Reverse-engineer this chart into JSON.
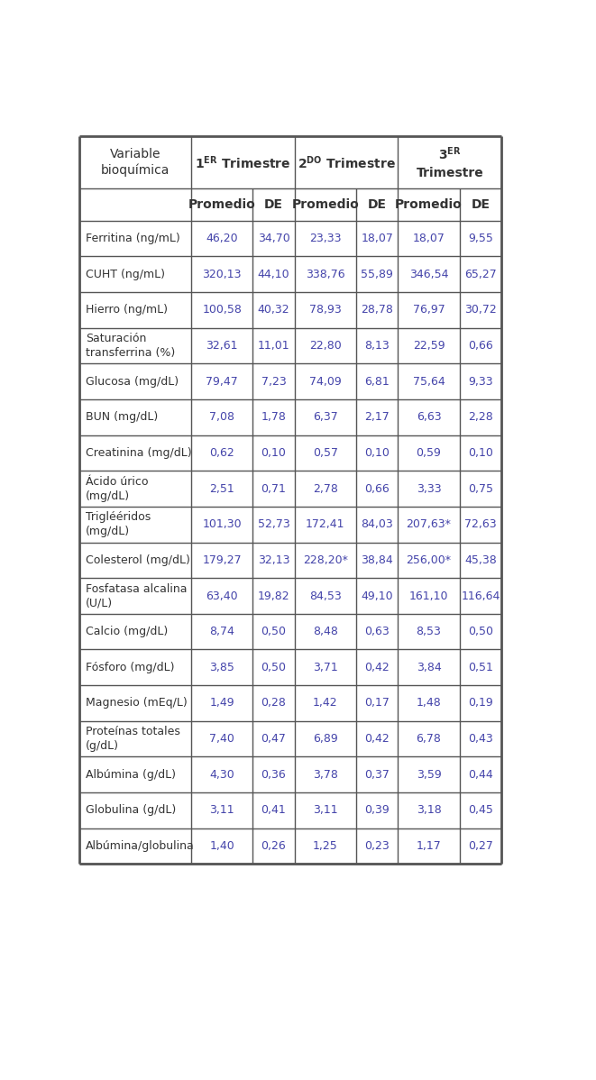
{
  "bg_color": "#ffffff",
  "border_color": "#555555",
  "text_color": "#333333",
  "data_text_color": "#4444aa",
  "rows": [
    [
      "Ferritina (ng/mL)",
      "46,20",
      "34,70",
      "23,33",
      "18,07",
      "18,07",
      "9,55"
    ],
    [
      "CUHT (ng/mL)",
      "320,13",
      "44,10",
      "338,76",
      "55,89",
      "346,54",
      "65,27"
    ],
    [
      "Hierro (ng/mL)",
      "100,58",
      "40,32",
      "78,93",
      "28,78",
      "76,97",
      "30,72"
    ],
    [
      "Saturación\ntransferrina (%)",
      "32,61",
      "11,01",
      "22,80",
      "8,13",
      "22,59",
      "0,66"
    ],
    [
      "Glucosa (mg/dL)",
      "79,47",
      "7,23",
      "74,09",
      "6,81",
      "75,64",
      "9,33"
    ],
    [
      "BUN (mg/dL)",
      "7,08",
      "1,78",
      "6,37",
      "2,17",
      "6,63",
      "2,28"
    ],
    [
      "Creatinina (mg/dL)",
      "0,62",
      "0,10",
      "0,57",
      "0,10",
      "0,59",
      "0,10"
    ],
    [
      "Ácido úrico\n(mg/dL)",
      "2,51",
      "0,71",
      "2,78",
      "0,66",
      "3,33",
      "0,75"
    ],
    [
      "Triglééridos\n(mg/dL)",
      "101,30",
      "52,73",
      "172,41",
      "84,03",
      "207,63*",
      "72,63"
    ],
    [
      "Colesterol (mg/dL)",
      "179,27",
      "32,13",
      "228,20*",
      "38,84",
      "256,00*",
      "45,38"
    ],
    [
      "Fosfatasa alcalina\n(U/L)",
      "63,40",
      "19,82",
      "84,53",
      "49,10",
      "161,10",
      "116,64"
    ],
    [
      "Calcio (mg/dL)",
      "8,74",
      "0,50",
      "8,48",
      "0,63",
      "8,53",
      "0,50"
    ],
    [
      "Fósforo (mg/dL)",
      "3,85",
      "0,50",
      "3,71",
      "0,42",
      "3,84",
      "0,51"
    ],
    [
      "Magnesio (mEq/L)",
      "1,49",
      "0,28",
      "1,42",
      "0,17",
      "1,48",
      "0,19"
    ],
    [
      "Proteínas totales\n(g/dL)",
      "7,40",
      "0,47",
      "6,89",
      "0,42",
      "6,78",
      "0,43"
    ],
    [
      "Albúmina (g/dL)",
      "4,30",
      "0,36",
      "3,78",
      "0,37",
      "3,59",
      "0,44"
    ],
    [
      "Globulina (g/dL)",
      "3,11",
      "0,41",
      "3,11",
      "0,39",
      "3,18",
      "0,45"
    ],
    [
      "Albúmina/globulina",
      "1,40",
      "0,26",
      "1,25",
      "0,23",
      "1,17",
      "0,27"
    ]
  ]
}
